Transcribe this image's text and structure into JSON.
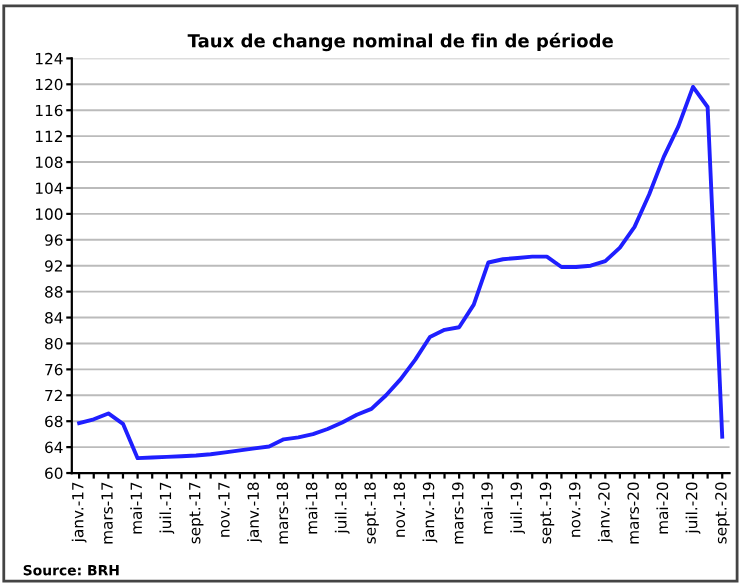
{
  "chart_data": {
    "type": "line",
    "title": "Taux de change nominal de fin de période",
    "categories": [
      "janv.-17",
      null,
      "mars-17",
      null,
      "mai-17",
      null,
      "juil.-17",
      null,
      "sept.-17",
      null,
      "nov.-17",
      null,
      "janv.-18",
      null,
      "mars-18",
      null,
      "mai-18",
      null,
      "juil.-18",
      null,
      "sept.-18",
      null,
      "nov.-18",
      null,
      "janv.-19",
      null,
      "mars-19",
      null,
      "mai-19",
      null,
      "juil.-19",
      null,
      "sept.-19",
      null,
      "nov.-19",
      null,
      "janv.-20",
      null,
      "mars-20",
      null,
      "mai-20",
      null,
      "juil.-20",
      null,
      "sept.-20"
    ],
    "series": [
      {
        "color": "#1f1fff",
        "values": [
          67.7,
          68.3,
          69.2,
          67.6,
          62.3,
          62.4,
          62.5,
          62.6,
          62.7,
          62.9,
          63.2,
          63.5,
          63.8,
          64.1,
          65.2,
          65.5,
          66.0,
          66.8,
          67.8,
          69.0,
          69.9,
          72.0,
          74.5,
          77.5,
          81.0,
          82.1,
          82.5,
          86.0,
          92.5,
          93.0,
          93.2,
          93.4,
          93.4,
          91.8,
          91.8,
          92.0,
          92.7,
          94.8,
          98.0,
          103.0,
          108.8,
          113.5,
          119.6,
          116.5,
          65.6
        ]
      }
    ],
    "ylim": [
      60,
      124
    ],
    "yticks": [
      60,
      64,
      68,
      72,
      76,
      80,
      84,
      88,
      92,
      96,
      100,
      104,
      108,
      112,
      116,
      120,
      124
    ],
    "grid": "y",
    "marker": "none",
    "line_style": "solid",
    "legend": false,
    "annotations": [
      "Source: BRH"
    ]
  }
}
